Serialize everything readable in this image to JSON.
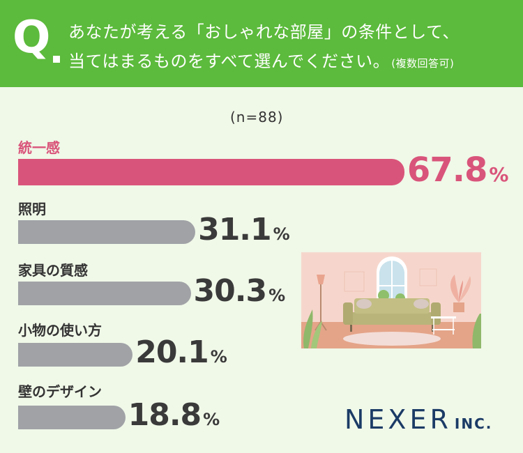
{
  "question": {
    "mark": "Q",
    "line1": "あなたが考える「おしゃれな部屋」の条件として、",
    "line2": "当てはまるものをすべて選んでください。",
    "note": "(複数回答可)"
  },
  "sample_size": "(n=88)",
  "logo": {
    "main": "NEXER",
    "sub": "INC."
  },
  "colors": {
    "header": "#5cba3c",
    "accent": "#d9547a",
    "bar": "#a0a2a6",
    "background": "#f0f8e8"
  },
  "chart_data": {
    "type": "bar",
    "orientation": "horizontal",
    "categories": [
      "統一感",
      "照明",
      "家具の質感",
      "小物の使い方",
      "壁のデザイン"
    ],
    "values": [
      67.8,
      31.1,
      30.3,
      20.1,
      18.8
    ],
    "value_labels": [
      "67.8",
      "31.1",
      "30.3",
      "20.1",
      "18.8"
    ],
    "unit": "%",
    "highlight_index": 0
  }
}
